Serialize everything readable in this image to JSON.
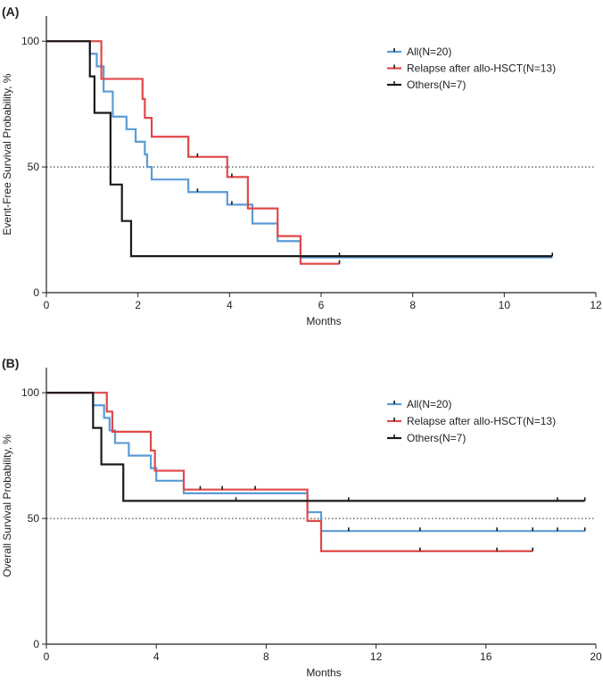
{
  "chart_data": [
    {
      "type": "line",
      "subtype": "kaplan-meier",
      "panel_label": "(A)",
      "xlabel": "Months",
      "ylabel": "Event-Free Survival Probability, %",
      "xlim": [
        0,
        12
      ],
      "ylim": [
        0,
        110
      ],
      "xticks": [
        0,
        2,
        4,
        6,
        8,
        10,
        12
      ],
      "xtick_labels": [
        "0",
        "2",
        "4",
        "6",
        "8",
        "10",
        "12"
      ],
      "yticks": [
        0,
        50,
        100
      ],
      "ytick_labels": [
        "0",
        "50",
        "100"
      ],
      "reference_line": 50,
      "legend_position": "top-right",
      "series": [
        {
          "name": "All(N=20)",
          "color": "#5B9BD5",
          "steps": [
            [
              0,
              100
            ],
            [
              0.95,
              95
            ],
            [
              1.1,
              90
            ],
            [
              1.25,
              80
            ],
            [
              1.45,
              70
            ],
            [
              1.75,
              65
            ],
            [
              1.95,
              60
            ],
            [
              2.15,
              55
            ],
            [
              2.2,
              50
            ],
            [
              2.3,
              45
            ],
            [
              3.1,
              40
            ],
            [
              3.95,
              35
            ],
            [
              4.5,
              27.5
            ],
            [
              5.05,
              20.5
            ],
            [
              5.55,
              14
            ],
            [
              11.05,
              14
            ]
          ],
          "censors": [
            [
              3.3,
              40
            ],
            [
              4.05,
              35
            ]
          ]
        },
        {
          "name": "Relapse after allo-HSCT(N=13)",
          "color": "#E04848",
          "steps": [
            [
              0,
              100
            ],
            [
              1.2,
              85
            ],
            [
              2.1,
              77
            ],
            [
              2.15,
              69.5
            ],
            [
              2.3,
              62
            ],
            [
              3.1,
              54
            ],
            [
              3.95,
              46
            ],
            [
              4.4,
              33.5
            ],
            [
              5.05,
              22.5
            ],
            [
              5.55,
              11.5
            ],
            [
              6.4,
              11.5
            ]
          ],
          "censors": [
            [
              3.3,
              54
            ],
            [
              4.05,
              46
            ],
            [
              6.4,
              11.5
            ]
          ]
        },
        {
          "name": "Others(N=7)",
          "color": "#1A1A1A",
          "steps": [
            [
              0,
              100
            ],
            [
              0.95,
              86
            ],
            [
              1.05,
              71.5
            ],
            [
              1.4,
              43
            ],
            [
              1.65,
              28.5
            ],
            [
              1.85,
              14.5
            ],
            [
              11.05,
              14.5
            ]
          ],
          "censors": [
            [
              6.4,
              14.5
            ],
            [
              11.05,
              14.5
            ]
          ]
        }
      ]
    },
    {
      "type": "line",
      "subtype": "kaplan-meier",
      "panel_label": "(B)",
      "xlabel": "Months",
      "ylabel": "Overall Survival Probability, %",
      "xlim": [
        0,
        20
      ],
      "ylim": [
        0,
        110
      ],
      "xticks": [
        0,
        4,
        8,
        12,
        16,
        20
      ],
      "xtick_labels": [
        "0",
        "4",
        "8",
        "12",
        "16",
        "20"
      ],
      "yticks": [
        0,
        50,
        100
      ],
      "ytick_labels": [
        "0",
        "50",
        "100"
      ],
      "reference_line": 50,
      "legend_position": "top-right",
      "series": [
        {
          "name": "All(N=20)",
          "color": "#5B9BD5",
          "steps": [
            [
              0,
              100
            ],
            [
              1.7,
              95
            ],
            [
              2.1,
              90
            ],
            [
              2.3,
              85
            ],
            [
              2.5,
              80
            ],
            [
              3.0,
              75
            ],
            [
              3.8,
              70
            ],
            [
              4.0,
              65
            ],
            [
              5.0,
              60
            ],
            [
              9.5,
              52.5
            ],
            [
              10.0,
              45
            ],
            [
              19.6,
              45
            ]
          ],
          "censors": [
            [
              11.0,
              45
            ],
            [
              13.6,
              45
            ],
            [
              16.4,
              45
            ],
            [
              17.7,
              45
            ],
            [
              18.6,
              45
            ],
            [
              19.6,
              45
            ]
          ]
        },
        {
          "name": "Relapse after allo-HSCT(N=13)",
          "color": "#E04848",
          "steps": [
            [
              0,
              100
            ],
            [
              2.2,
              92.5
            ],
            [
              2.4,
              84.5
            ],
            [
              3.8,
              77
            ],
            [
              3.95,
              69
            ],
            [
              5.0,
              61.5
            ],
            [
              9.5,
              49
            ],
            [
              10.0,
              37
            ],
            [
              17.7,
              37
            ]
          ],
          "censors": [
            [
              5.6,
              61.5
            ],
            [
              6.4,
              61.5
            ],
            [
              7.6,
              61.5
            ],
            [
              13.6,
              37
            ],
            [
              16.4,
              37
            ],
            [
              17.7,
              37
            ]
          ]
        },
        {
          "name": "Others(N=7)",
          "color": "#1A1A1A",
          "steps": [
            [
              0,
              100
            ],
            [
              1.7,
              86
            ],
            [
              2.0,
              71.5
            ],
            [
              2.8,
              57
            ],
            [
              19.6,
              57
            ]
          ],
          "censors": [
            [
              6.9,
              57
            ],
            [
              11.0,
              57
            ],
            [
              18.6,
              57
            ],
            [
              19.6,
              57
            ]
          ]
        }
      ]
    }
  ]
}
